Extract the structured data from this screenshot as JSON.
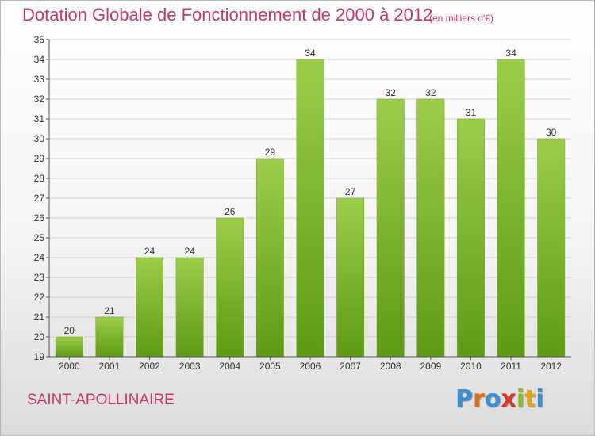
{
  "title": "Dotation Globale de Fonctionnement de 2000 à 2012",
  "subtitle": "(en milliers d'€)",
  "commune": "SAINT-APOLLINAIRE",
  "logo": {
    "letters": [
      {
        "ch": "P",
        "color": "#3a8fd0"
      },
      {
        "ch": "r",
        "color": "#e06a1b"
      },
      {
        "ch": "o",
        "color": "#3a8fd0"
      },
      {
        "ch": "x",
        "color": "#d63a2a"
      },
      {
        "ch": "i",
        "color": "#8cbd2a"
      },
      {
        "ch": "t",
        "color": "#e0a51b"
      },
      {
        "ch": "i",
        "color": "#3a8fd0"
      }
    ]
  },
  "chart_data": {
    "type": "bar",
    "title": "Dotation Globale de Fonctionnement de 2000 à 2012",
    "subtitle": "(en milliers d'€)",
    "xlabel": "",
    "ylabel": "",
    "categories": [
      "2000",
      "2001",
      "2002",
      "2003",
      "2004",
      "2005",
      "2006",
      "2007",
      "2008",
      "2009",
      "2010",
      "2011",
      "2012"
    ],
    "values": [
      20,
      21,
      24,
      24,
      26,
      29,
      34,
      27,
      32,
      32,
      31,
      34,
      30
    ],
    "ylim": [
      19,
      35
    ],
    "yticks": [
      19,
      20,
      21,
      22,
      23,
      24,
      25,
      26,
      27,
      28,
      29,
      30,
      31,
      32,
      33,
      34,
      35
    ],
    "grid": true,
    "bar_color_top": "#9ccd4a",
    "bar_color_bottom": "#5e9b12"
  }
}
